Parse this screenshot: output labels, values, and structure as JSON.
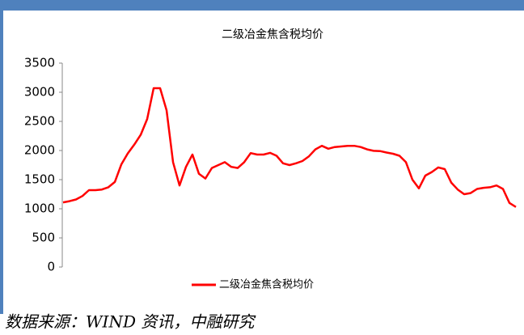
{
  "chart_data": {
    "type": "line",
    "title": "二级冶金焦含税均价",
    "categories": [
      null,
      null,
      null,
      null,
      null,
      null,
      null,
      null,
      null,
      null,
      null,
      null,
      null,
      null,
      null,
      null,
      null,
      null,
      null,
      null,
      null,
      null,
      null,
      null,
      null,
      null,
      null,
      null,
      null,
      null,
      null,
      null,
      null,
      null,
      null,
      null,
      null,
      null,
      null,
      null,
      null,
      null,
      null,
      null,
      null,
      null,
      null,
      null,
      null,
      null,
      null,
      null,
      null,
      null,
      null,
      null,
      null,
      null,
      null,
      null,
      null,
      null,
      null,
      null,
      null,
      null,
      null,
      null,
      null,
      null,
      null
    ],
    "series": [
      {
        "name": "二级冶金焦含税均价",
        "color": "#ff0000",
        "values": [
          1110,
          1130,
          1160,
          1220,
          1320,
          1320,
          1330,
          1370,
          1460,
          1760,
          1950,
          2100,
          2270,
          2540,
          3070,
          3070,
          2690,
          1800,
          1400,
          1720,
          1930,
          1600,
          1520,
          1700,
          1750,
          1800,
          1720,
          1700,
          1800,
          1955,
          1930,
          1930,
          1960,
          1910,
          1780,
          1750,
          1780,
          1820,
          1900,
          2020,
          2080,
          2030,
          2060,
          2070,
          2080,
          2080,
          2060,
          2020,
          1995,
          1990,
          1965,
          1945,
          1910,
          1800,
          1500,
          1350,
          1570,
          1630,
          1710,
          1680,
          1450,
          1330,
          1250,
          1270,
          1340,
          1360,
          1370,
          1400,
          1340,
          1100,
          1030
        ]
      }
    ],
    "ylim": [
      0,
      3500
    ],
    "yticks": [
      0,
      500,
      1000,
      1500,
      2000,
      2500,
      3000,
      3500
    ],
    "source": "数据来源：WIND 资讯，中融研究"
  }
}
